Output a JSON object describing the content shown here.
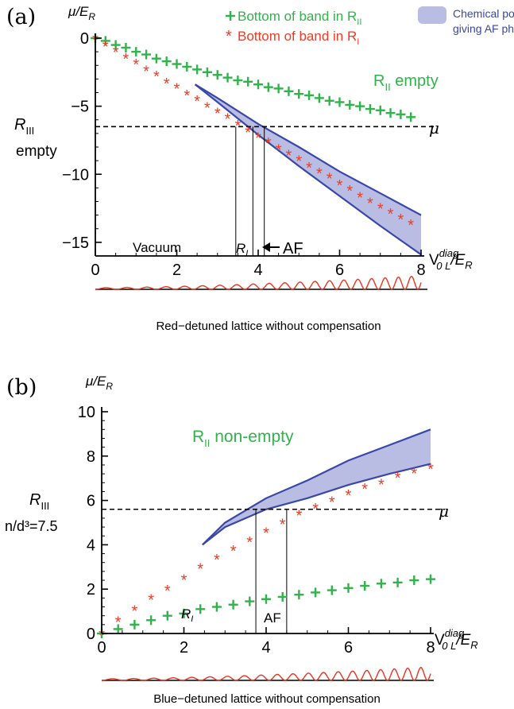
{
  "colors": {
    "green": "#2fb34a",
    "red": "#ee3b24",
    "band_stroke": "#3947a8",
    "band_fill": "#b9bde4",
    "axis": "#000000",
    "wave": "#e8331f"
  },
  "legend": {
    "green": "Bottom of band in R",
    "green_sub": "II",
    "red": "Bottom of band in R",
    "red_sub": "I",
    "band_line1": "Chemical potentials",
    "band_line2": "giving AF phase"
  },
  "chart_data": [
    {
      "type": "scatter",
      "panel_label": "(a)",
      "ylabel": "μ/E",
      "ylabel_sub": "R",
      "xlabel": "V",
      "xlabel_sup": "diag",
      "xlabel_sub": "0 L",
      "xlabel_tail": "/E",
      "xlabel_tail_sub": "R",
      "xlim": [
        0,
        8
      ],
      "ylim": [
        -16,
        0
      ],
      "x_ticks": [
        "0",
        "2",
        "4",
        "6",
        "8"
      ],
      "y_ticks": [
        "0",
        "−5",
        "−10",
        "−15"
      ],
      "y_tick_values": [
        0,
        -5,
        -10,
        -15
      ],
      "mu_level": -6.5,
      "mu_label": "μ",
      "vlines": [
        3.45,
        3.87,
        4.15
      ],
      "annotations": {
        "r2": "R",
        "r2_sub": "II",
        "r2_tail": " empty",
        "r3": "R",
        "r3_sub": "III",
        "r3_line2": "empty",
        "vacuum": "Vacuum",
        "ri": "R",
        "ri_sub": "I",
        "af": "AF"
      },
      "caption": "Red−detuned lattice without compensation",
      "series": [
        {
          "name": "Bottom of band in R_II",
          "marker": "+",
          "x": [
            0,
            0.25,
            0.5,
            0.75,
            1.0,
            1.25,
            1.5,
            1.75,
            2.0,
            2.25,
            2.5,
            2.75,
            3.0,
            3.25,
            3.5,
            3.75,
            4.0,
            4.25,
            4.5,
            4.75,
            5.0,
            5.25,
            5.5,
            5.75,
            6.0,
            6.25,
            6.5,
            6.75,
            7.0,
            7.25,
            7.5,
            7.75
          ],
          "y": [
            0,
            -0.2,
            -0.5,
            -0.7,
            -1.0,
            -1.2,
            -1.5,
            -1.7,
            -1.9,
            -2.1,
            -2.3,
            -2.5,
            -2.7,
            -2.9,
            -3.1,
            -3.2,
            -3.4,
            -3.6,
            -3.7,
            -3.9,
            -4.1,
            -4.2,
            -4.4,
            -4.6,
            -4.7,
            -4.9,
            -5.0,
            -5.2,
            -5.3,
            -5.5,
            -5.6,
            -5.8
          ]
        },
        {
          "name": "Bottom of band in R_I",
          "marker": "*",
          "x": [
            0,
            0.25,
            0.5,
            0.75,
            1.0,
            1.25,
            1.5,
            1.75,
            2.0,
            2.25,
            2.5,
            2.75,
            3.0,
            3.25,
            3.5,
            3.75,
            4.0,
            4.25,
            4.5,
            4.75,
            5.0,
            5.25,
            5.5,
            5.75,
            6.0,
            6.25,
            6.5,
            6.75,
            7.0,
            7.25,
            7.5,
            7.75
          ],
          "y": [
            0,
            -0.5,
            -0.9,
            -1.4,
            -1.8,
            -2.3,
            -2.7,
            -3.2,
            -3.6,
            -4.1,
            -4.5,
            -5.0,
            -5.4,
            -5.8,
            -6.3,
            -6.8,
            -7.2,
            -7.6,
            -8.1,
            -8.5,
            -8.9,
            -9.4,
            -9.8,
            -10.2,
            -10.7,
            -11.1,
            -11.6,
            -12.0,
            -12.4,
            -12.8,
            -13.2,
            -13.6
          ]
        }
      ],
      "band": {
        "name": "Chemical potentials giving AF phase",
        "upper": {
          "x": [
            2.45,
            3.0,
            4.0,
            5.0,
            6.0,
            7.0,
            8.0
          ],
          "y": [
            -3.4,
            -4.4,
            -6.3,
            -8.0,
            -9.8,
            -11.4,
            -13.0
          ]
        },
        "lower": {
          "x": [
            2.45,
            3.0,
            4.0,
            5.0,
            6.0,
            7.0,
            8.0
          ],
          "y": [
            -3.4,
            -4.7,
            -7.1,
            -9.4,
            -11.6,
            -13.8,
            -15.9
          ]
        }
      },
      "wave": {
        "x_start": 0,
        "x_end": 8,
        "cycles": 15,
        "grows": "right"
      }
    },
    {
      "type": "scatter",
      "panel_label": "(b)",
      "ylabel": "μ/E",
      "ylabel_sub": "R",
      "xlabel": "V",
      "xlabel_sup": "diag",
      "xlabel_sub": "0 L",
      "xlabel_tail": "/E",
      "xlabel_tail_sub": "R",
      "xlim": [
        0,
        8
      ],
      "ylim": [
        0,
        10
      ],
      "x_ticks": [
        "0",
        "2",
        "4",
        "6",
        "8"
      ],
      "y_ticks": [
        "0",
        "2",
        "4",
        "6",
        "8",
        "10"
      ],
      "y_tick_values": [
        0,
        2,
        4,
        6,
        8,
        10
      ],
      "mu_level": 5.6,
      "mu_label": "μ",
      "vlines": [
        3.75,
        4.5
      ],
      "annotations": {
        "r2": "R",
        "r2_sub": "II",
        "r2_tail": " non-empty",
        "r3": "R",
        "r3_sub": "III",
        "r3_line2": "n/d³=7.5",
        "ri": "R",
        "ri_sub": "I",
        "af": "AF"
      },
      "caption": "Blue−detuned lattice without compensation",
      "series": [
        {
          "name": "Bottom of band in R_II",
          "marker": "+",
          "x": [
            0.0,
            0.4,
            0.8,
            1.2,
            1.6,
            2.0,
            2.4,
            2.8,
            3.2,
            3.6,
            4.0,
            4.4,
            4.8,
            5.2,
            5.6,
            6.0,
            6.4,
            6.8,
            7.2,
            7.6,
            8.0
          ],
          "y": [
            0.0,
            0.2,
            0.4,
            0.6,
            0.8,
            0.9,
            1.1,
            1.2,
            1.3,
            1.45,
            1.55,
            1.65,
            1.75,
            1.85,
            1.95,
            2.05,
            2.15,
            2.25,
            2.3,
            2.4,
            2.45
          ]
        },
        {
          "name": "Bottom of band in R_I",
          "marker": "*",
          "x": [
            0.0,
            0.4,
            0.8,
            1.2,
            1.6,
            2.0,
            2.4,
            2.8,
            3.2,
            3.6,
            4.0,
            4.4,
            4.8,
            5.2,
            5.6,
            6.0,
            6.4,
            6.8,
            7.2,
            7.6,
            8.0
          ],
          "y": [
            0.0,
            0.6,
            1.1,
            1.6,
            2.0,
            2.5,
            3.0,
            3.4,
            3.8,
            4.2,
            4.6,
            5.0,
            5.4,
            5.7,
            6.0,
            6.3,
            6.6,
            6.8,
            7.1,
            7.3,
            7.5
          ]
        }
      ],
      "band": {
        "name": "Chemical potentials giving AF phase",
        "upper": {
          "x": [
            2.45,
            3.0,
            4.0,
            5.0,
            6.0,
            7.0,
            8.0
          ],
          "y": [
            4.0,
            5.0,
            6.1,
            6.9,
            7.8,
            8.5,
            9.2
          ]
        },
        "lower": {
          "x": [
            2.45,
            3.0,
            4.0,
            5.0,
            6.0,
            7.0,
            8.0
          ],
          "y": [
            4.0,
            4.8,
            5.6,
            6.1,
            6.7,
            7.2,
            7.65
          ]
        }
      },
      "wave": {
        "x_start": 0,
        "x_end": 8,
        "cycles": 15,
        "grows": "right"
      }
    }
  ]
}
